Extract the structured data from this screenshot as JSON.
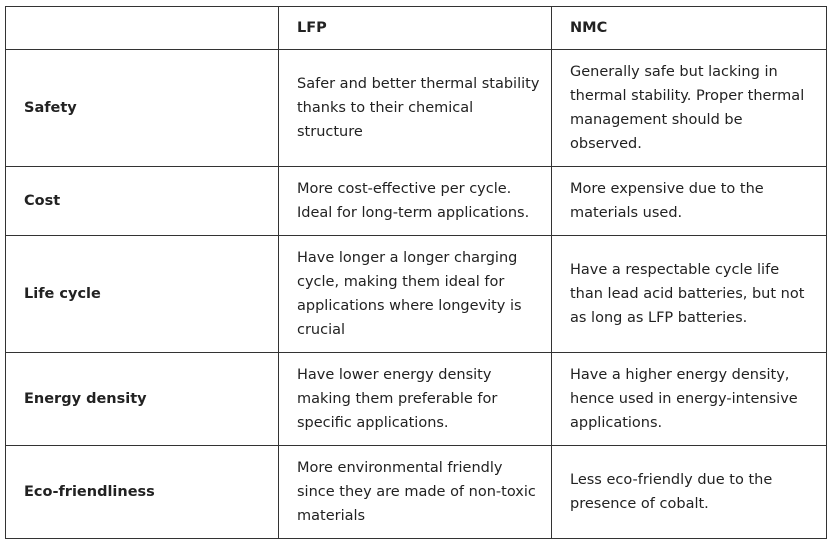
{
  "table": {
    "headers": [
      "",
      "LFP",
      "NMC"
    ],
    "rows": [
      {
        "label": "Safety",
        "lfp": "Safer and better thermal stability thanks to their chemical structure",
        "nmc": "Generally safe but lacking in thermal stability. Proper thermal management should be observed."
      },
      {
        "label": "Cost",
        "lfp": "More cost-effective per cycle. Ideal for long-term applications.",
        "nmc": "More expensive due to the materials used."
      },
      {
        "label": "Life cycle",
        "lfp": "Have longer a longer charging cycle, making them ideal for applications where longevity is crucial",
        "nmc": "Have a respectable cycle life than lead acid batteries, but not as long as LFP batteries."
      },
      {
        "label": "Energy density",
        "lfp": "Have lower energy density making them preferable for specific applications.",
        "nmc": "Have a higher energy density, hence used in energy-intensive applications."
      },
      {
        "label": "Eco-friendliness",
        "lfp": "More environmental friendly since they are made of non-toxic materials",
        "nmc": "Less eco-friendly due to the presence of cobalt."
      }
    ]
  }
}
